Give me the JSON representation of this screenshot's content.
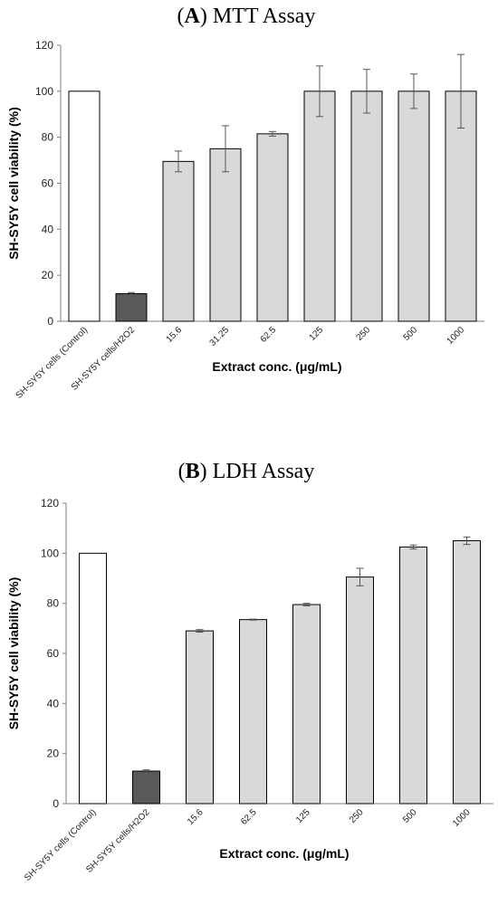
{
  "panels": [
    {
      "letter": "A",
      "title_rest": " MTT Assay"
    },
    {
      "letter": "B",
      "title_rest": " LDH Assay"
    }
  ],
  "chart_data": [
    {
      "type": "bar",
      "title": "(A) MTT Assay",
      "xlabel": "Extract conc. (μg/mL)",
      "ylabel": "SH-SY5Y cell viability (%)",
      "ylim": [
        0,
        120
      ],
      "yticks": [
        0,
        20,
        40,
        60,
        80,
        100,
        120
      ],
      "grid": false,
      "categories": [
        "SH-SY5Y cells (Control)",
        "SH-SY5Y cells/H2O2",
        "15.6",
        "31.25",
        "62.5",
        "125",
        "250",
        "500",
        "1000"
      ],
      "values": [
        100,
        12,
        69.5,
        75,
        81.5,
        100,
        100,
        100,
        100
      ],
      "errors": [
        0,
        0.5,
        4.5,
        10,
        1,
        11,
        9.5,
        7.5,
        16
      ],
      "colors": [
        "#ffffff",
        "#595959",
        "#d9d9d9",
        "#d9d9d9",
        "#d9d9d9",
        "#d9d9d9",
        "#d9d9d9",
        "#d9d9d9",
        "#d9d9d9"
      ]
    },
    {
      "type": "bar",
      "title": "(B) LDH Assay",
      "xlabel": "Extract conc. (μg/mL)",
      "ylabel": "SH-SY5Y cell viability (%)",
      "ylim": [
        0,
        120
      ],
      "yticks": [
        0,
        20,
        40,
        60,
        80,
        100,
        120
      ],
      "grid": false,
      "categories": [
        "SH-SY5Y cells (Control)",
        "SH-SY5Y cells/H2O2",
        "15.6",
        "62.5",
        "125",
        "250",
        "500",
        "1000"
      ],
      "values": [
        100,
        13,
        69,
        73.5,
        79.5,
        90.5,
        102.5,
        105
      ],
      "errors": [
        0,
        0.5,
        0.5,
        0.2,
        0.5,
        3.5,
        0.8,
        1.5
      ],
      "colors": [
        "#ffffff",
        "#595959",
        "#d9d9d9",
        "#d9d9d9",
        "#d9d9d9",
        "#d9d9d9",
        "#d9d9d9",
        "#d9d9d9"
      ]
    }
  ]
}
